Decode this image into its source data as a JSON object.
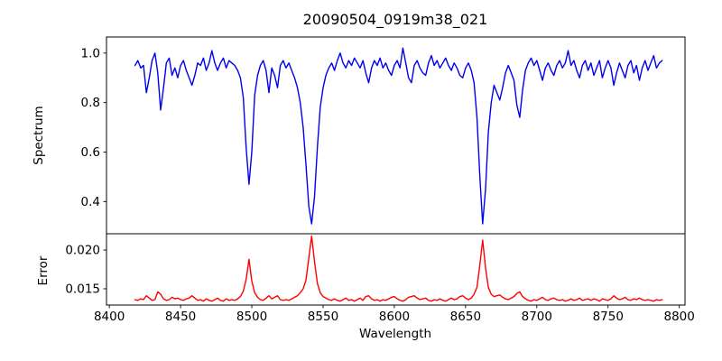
{
  "figure": {
    "background": "#ffffff",
    "title": "20090504_0919m38_021"
  },
  "chart_data": [
    {
      "type": "line",
      "name": "spectrum",
      "title": "20090504_0919m38_021",
      "ylabel": "Spectrum",
      "legend": "none",
      "grid": false,
      "color": "#0000ee",
      "xlim": [
        8398,
        8804
      ],
      "ylim": [
        0.27,
        1.065
      ],
      "yticks": [
        0.4,
        0.6,
        0.8,
        1.0
      ],
      "ytick_labels": [
        "0.4",
        "0.6",
        "0.8",
        "1.0"
      ],
      "absorption_line_centers": [
        8498,
        8542,
        8662
      ],
      "x_start": 8418,
      "x_step": 2,
      "values": [
        0.95,
        0.97,
        0.94,
        0.95,
        0.84,
        0.9,
        0.97,
        1.0,
        0.92,
        0.77,
        0.86,
        0.96,
        0.98,
        0.91,
        0.94,
        0.9,
        0.95,
        0.97,
        0.93,
        0.9,
        0.87,
        0.91,
        0.96,
        0.95,
        0.98,
        0.93,
        0.96,
        1.01,
        0.96,
        0.93,
        0.96,
        0.98,
        0.94,
        0.97,
        0.96,
        0.95,
        0.93,
        0.9,
        0.82,
        0.62,
        0.47,
        0.6,
        0.83,
        0.91,
        0.95,
        0.97,
        0.93,
        0.84,
        0.94,
        0.91,
        0.86,
        0.95,
        0.97,
        0.94,
        0.96,
        0.93,
        0.9,
        0.86,
        0.8,
        0.7,
        0.55,
        0.38,
        0.31,
        0.42,
        0.62,
        0.78,
        0.86,
        0.91,
        0.94,
        0.96,
        0.93,
        0.97,
        1.0,
        0.96,
        0.94,
        0.97,
        0.95,
        0.98,
        0.96,
        0.94,
        0.97,
        0.92,
        0.88,
        0.94,
        0.97,
        0.95,
        0.98,
        0.94,
        0.96,
        0.93,
        0.91,
        0.95,
        0.97,
        0.94,
        1.02,
        0.96,
        0.9,
        0.88,
        0.95,
        0.97,
        0.94,
        0.92,
        0.91,
        0.96,
        0.99,
        0.95,
        0.97,
        0.94,
        0.96,
        0.98,
        0.95,
        0.93,
        0.96,
        0.94,
        0.91,
        0.9,
        0.94,
        0.96,
        0.93,
        0.88,
        0.74,
        0.5,
        0.31,
        0.45,
        0.68,
        0.8,
        0.87,
        0.84,
        0.81,
        0.86,
        0.92,
        0.95,
        0.92,
        0.89,
        0.79,
        0.74,
        0.85,
        0.93,
        0.96,
        0.98,
        0.95,
        0.97,
        0.93,
        0.89,
        0.94,
        0.96,
        0.93,
        0.91,
        0.95,
        0.97,
        0.94,
        0.96,
        1.01,
        0.95,
        0.97,
        0.93,
        0.9,
        0.95,
        0.97,
        0.93,
        0.96,
        0.91,
        0.94,
        0.97,
        0.9,
        0.94,
        0.97,
        0.94,
        0.87,
        0.92,
        0.96,
        0.93,
        0.9,
        0.95,
        0.97,
        0.92,
        0.95,
        0.89,
        0.94,
        0.97,
        0.93,
        0.96,
        0.99,
        0.94,
        0.96,
        0.97
      ]
    },
    {
      "type": "line",
      "name": "error",
      "ylabel": "Error",
      "xlabel": "Wavelength",
      "legend": "none",
      "grid": false,
      "color": "#ff0000",
      "xlim": [
        8398,
        8804
      ],
      "ylim": [
        0.0129,
        0.0221
      ],
      "yticks": [
        0.015,
        0.02
      ],
      "ytick_labels": [
        "0.015",
        "0.020"
      ],
      "xticks": [
        8400,
        8450,
        8500,
        8550,
        8600,
        8650,
        8700,
        8750,
        8800
      ],
      "xtick_labels": [
        "8400",
        "8450",
        "8500",
        "8550",
        "8600",
        "8650",
        "8700",
        "8750",
        "8800"
      ],
      "error_peak_centers": [
        8498,
        8542,
        8662
      ],
      "x_start": 8418,
      "x_step": 2,
      "values": [
        0.0136,
        0.0135,
        0.0137,
        0.0136,
        0.0141,
        0.0138,
        0.0135,
        0.0136,
        0.0146,
        0.0143,
        0.0137,
        0.0135,
        0.0136,
        0.0139,
        0.0137,
        0.0138,
        0.0136,
        0.0135,
        0.0137,
        0.0138,
        0.0141,
        0.0138,
        0.0135,
        0.0136,
        0.0134,
        0.0137,
        0.0135,
        0.0134,
        0.0136,
        0.0138,
        0.0135,
        0.0134,
        0.0137,
        0.0135,
        0.0136,
        0.0135,
        0.0137,
        0.014,
        0.0147,
        0.0162,
        0.0188,
        0.016,
        0.0145,
        0.0139,
        0.0136,
        0.0135,
        0.0138,
        0.0141,
        0.0137,
        0.0139,
        0.0141,
        0.0136,
        0.0135,
        0.0136,
        0.0135,
        0.0137,
        0.0139,
        0.0141,
        0.0145,
        0.015,
        0.0161,
        0.019,
        0.0218,
        0.0185,
        0.0157,
        0.0145,
        0.014,
        0.0138,
        0.0136,
        0.0135,
        0.0137,
        0.0135,
        0.0134,
        0.0136,
        0.0138,
        0.0135,
        0.0136,
        0.0134,
        0.0136,
        0.0138,
        0.0135,
        0.014,
        0.0141,
        0.0137,
        0.0135,
        0.0136,
        0.0134,
        0.0136,
        0.0135,
        0.0137,
        0.0139,
        0.014,
        0.0137,
        0.0135,
        0.0134,
        0.0136,
        0.0139,
        0.014,
        0.0141,
        0.0138,
        0.0136,
        0.0137,
        0.0138,
        0.0135,
        0.0134,
        0.0136,
        0.0135,
        0.0137,
        0.0135,
        0.0134,
        0.0136,
        0.0138,
        0.0136,
        0.0137,
        0.014,
        0.0141,
        0.0138,
        0.0136,
        0.0138,
        0.0143,
        0.0152,
        0.0181,
        0.0213,
        0.0177,
        0.0152,
        0.0143,
        0.014,
        0.0141,
        0.0142,
        0.0139,
        0.0137,
        0.0136,
        0.0138,
        0.014,
        0.0144,
        0.0146,
        0.014,
        0.0137,
        0.0135,
        0.0134,
        0.0136,
        0.0135,
        0.0137,
        0.0139,
        0.0136,
        0.0135,
        0.0137,
        0.0138,
        0.0136,
        0.0135,
        0.0136,
        0.0134,
        0.0135,
        0.0137,
        0.0135,
        0.0136,
        0.0138,
        0.0135,
        0.0136,
        0.0137,
        0.0135,
        0.0137,
        0.0136,
        0.0134,
        0.0137,
        0.0136,
        0.0135,
        0.0137,
        0.0141,
        0.0138,
        0.0136,
        0.0137,
        0.0139,
        0.0136,
        0.0135,
        0.0137,
        0.0136,
        0.0138,
        0.0136,
        0.0135,
        0.0136,
        0.0135,
        0.0134,
        0.0136,
        0.0135,
        0.0136
      ]
    }
  ]
}
